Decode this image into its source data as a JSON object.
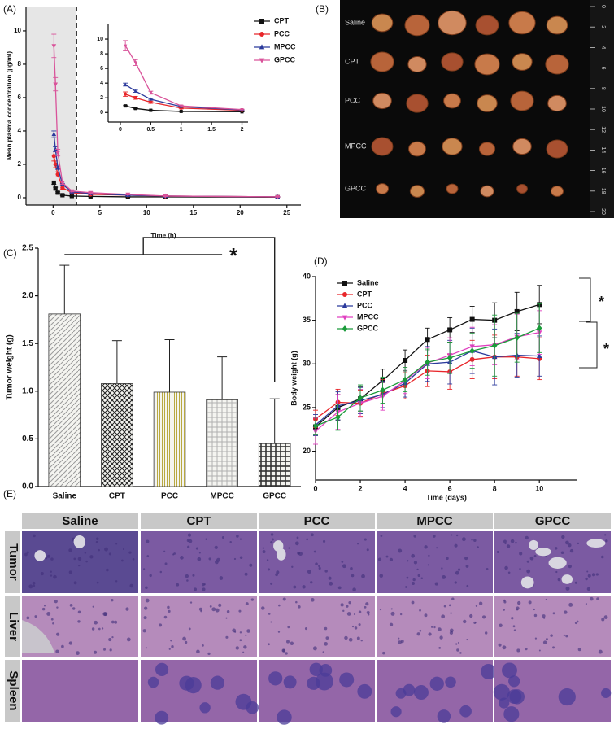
{
  "panel_labels": [
    "(A)",
    "(B)",
    "(C)",
    "(D)",
    "(E)"
  ],
  "chart_data": [
    {
      "type": "line",
      "ylabel": "Mean plasma concentration (µg/ml)",
      "xlabel": "Time (h)",
      "x": [
        0.083,
        0.25,
        0.5,
        1,
        2,
        4,
        8,
        12,
        24
      ],
      "xlim": [
        -2.9,
        26.5
      ],
      "xticks": [
        0,
        5,
        10,
        15,
        20,
        25
      ],
      "ylim": [
        -0.44,
        11.46
      ],
      "yticks": [
        0,
        2,
        4,
        6,
        8,
        10
      ],
      "shade_to": 2.5,
      "series": [
        {
          "name": "CPT",
          "color": "#111111",
          "marker": "square",
          "values": [
            0.9,
            0.55,
            0.3,
            0.15,
            0.1,
            0.08,
            0.05,
            0.05,
            0.03
          ],
          "errors": [
            0.1,
            0.08,
            0.05,
            0.03,
            0.02,
            0.02,
            0.02,
            0.02,
            0.01
          ]
        },
        {
          "name": "PCC",
          "color": "#e8262a",
          "marker": "circle",
          "values": [
            2.5,
            2.0,
            1.4,
            0.6,
            0.3,
            0.2,
            0.15,
            0.1,
            0.05
          ],
          "errors": [
            0.3,
            0.2,
            0.15,
            0.1,
            0.05,
            0.04,
            0.03,
            0.03,
            0.02
          ]
        },
        {
          "name": "MPCC",
          "color": "#2b3a9c",
          "marker": "triangle-up",
          "values": [
            3.8,
            2.9,
            1.8,
            0.8,
            0.35,
            0.25,
            0.15,
            0.1,
            0.05
          ],
          "errors": [
            0.2,
            0.15,
            0.1,
            0.06,
            0.05,
            0.04,
            0.03,
            0.03,
            0.02
          ]
        },
        {
          "name": "GPCC",
          "color": "#d9539a",
          "marker": "triangle-down",
          "values": [
            9.1,
            6.8,
            2.7,
            0.9,
            0.4,
            0.3,
            0.2,
            0.1,
            0.05
          ],
          "errors": [
            0.7,
            0.4,
            0.2,
            0.1,
            0.05,
            0.05,
            0.03,
            0.03,
            0.02
          ]
        }
      ],
      "inset": {
        "xlim": [
          -0.2,
          2.1
        ],
        "xticks": [
          0,
          0.5,
          1,
          1.5,
          2
        ],
        "ylim": [
          -1.3,
          12
        ],
        "yticks": [
          0,
          2,
          4,
          6,
          8,
          10
        ]
      }
    },
    {
      "type": "bar",
      "ylabel": "Tumor weight (g)",
      "categories": [
        "Saline",
        "CPT",
        "PCC",
        "MPCC",
        "GPCC"
      ],
      "values": [
        1.81,
        1.08,
        0.99,
        0.91,
        0.45
      ],
      "errors": [
        0.51,
        0.45,
        0.55,
        0.45,
        0.47
      ],
      "colors": [
        "#9a9a9a",
        "#222222",
        "#b8a840",
        "#b0b0b0",
        "#333333"
      ],
      "patterns": [
        "diagonal",
        "crosshatch",
        "vertical",
        "grid",
        "grid"
      ],
      "ylim": [
        0,
        2.5
      ],
      "yticks": [
        {
          "value": 0,
          "label": "0.0"
        },
        {
          "value": 0.5,
          "label": "0.5"
        },
        {
          "value": 1,
          "label": "1.0"
        },
        {
          "value": 1.5,
          "label": "1.5"
        },
        {
          "value": 2,
          "label": "2.0"
        },
        {
          "value": 2.5,
          "label": "2.5"
        }
      ],
      "annotation": "*"
    },
    {
      "type": "line",
      "ylabel": "Body weight (g)",
      "xlabel": "Time (days)",
      "x": [
        0,
        1,
        2,
        3,
        4,
        5,
        6,
        7,
        8,
        9,
        10
      ],
      "xlim": [
        0,
        11.7
      ],
      "xticks": [
        0,
        2,
        4,
        6,
        8,
        10
      ],
      "ylim": [
        16.7,
        40
      ],
      "yticks": [
        20,
        25,
        30,
        35,
        40
      ],
      "series": [
        {
          "name": "Saline",
          "color": "#111111",
          "marker": "square",
          "values": [
            22.8,
            25.0,
            26.0,
            28.1,
            30.4,
            32.8,
            33.9,
            35.1,
            35.0,
            36.0,
            36.8
          ],
          "errors": [
            1.0,
            1.5,
            1.4,
            1.3,
            1.2,
            1.3,
            1.4,
            1.5,
            2.0,
            2.2,
            2.2
          ]
        },
        {
          "name": "CPT",
          "color": "#e8262a",
          "marker": "circle",
          "values": [
            23.7,
            25.6,
            25.5,
            26.6,
            27.5,
            29.2,
            29.1,
            30.5,
            30.8,
            30.8,
            30.6
          ],
          "errors": [
            1.0,
            1.5,
            1.5,
            1.6,
            1.5,
            1.8,
            2.0,
            2.2,
            2.5,
            2.2,
            2.4
          ]
        },
        {
          "name": "PCC",
          "color": "#2b3a9c",
          "marker": "triangle-up",
          "values": [
            23.0,
            25.2,
            25.8,
            26.5,
            27.8,
            30.0,
            30.2,
            31.5,
            30.8,
            31.0,
            30.9
          ],
          "errors": [
            1.2,
            1.6,
            1.5,
            1.5,
            1.6,
            2.0,
            2.5,
            2.6,
            3.2,
            2.5,
            2.3
          ]
        },
        {
          "name": "MPCC",
          "color": "#e040c0",
          "marker": "triangle-down",
          "values": [
            22.3,
            24.5,
            25.5,
            26.3,
            28.1,
            30.1,
            31.0,
            32.0,
            32.2,
            33.1,
            33.6
          ],
          "errors": [
            1.5,
            2.0,
            1.6,
            1.6,
            1.5,
            1.8,
            2.0,
            2.2,
            2.3,
            2.6,
            2.5
          ]
        },
        {
          "name": "GPCC",
          "color": "#1a9b3a",
          "marker": "diamond",
          "values": [
            22.9,
            23.9,
            26.1,
            27.0,
            28.2,
            30.2,
            30.7,
            31.5,
            32.1,
            33.0,
            34.1
          ],
          "errors": [
            1.0,
            1.5,
            1.5,
            1.5,
            1.4,
            1.5,
            1.8,
            2.0,
            3.5,
            2.8,
            2.8
          ]
        }
      ],
      "annotations": [
        "*",
        "*"
      ]
    }
  ],
  "photo": {
    "row_labels": [
      "Saline",
      "CPT",
      "PCC",
      "MPCC",
      "GPCC"
    ],
    "ruler": [
      0,
      2,
      4,
      6,
      8,
      10,
      12,
      14,
      16,
      18,
      20
    ]
  },
  "histology": {
    "columns": [
      "Saline",
      "CPT",
      "PCC",
      "MPCC",
      "GPCC"
    ],
    "rows": [
      "Tumor",
      "Liver",
      "Spleen"
    ]
  }
}
